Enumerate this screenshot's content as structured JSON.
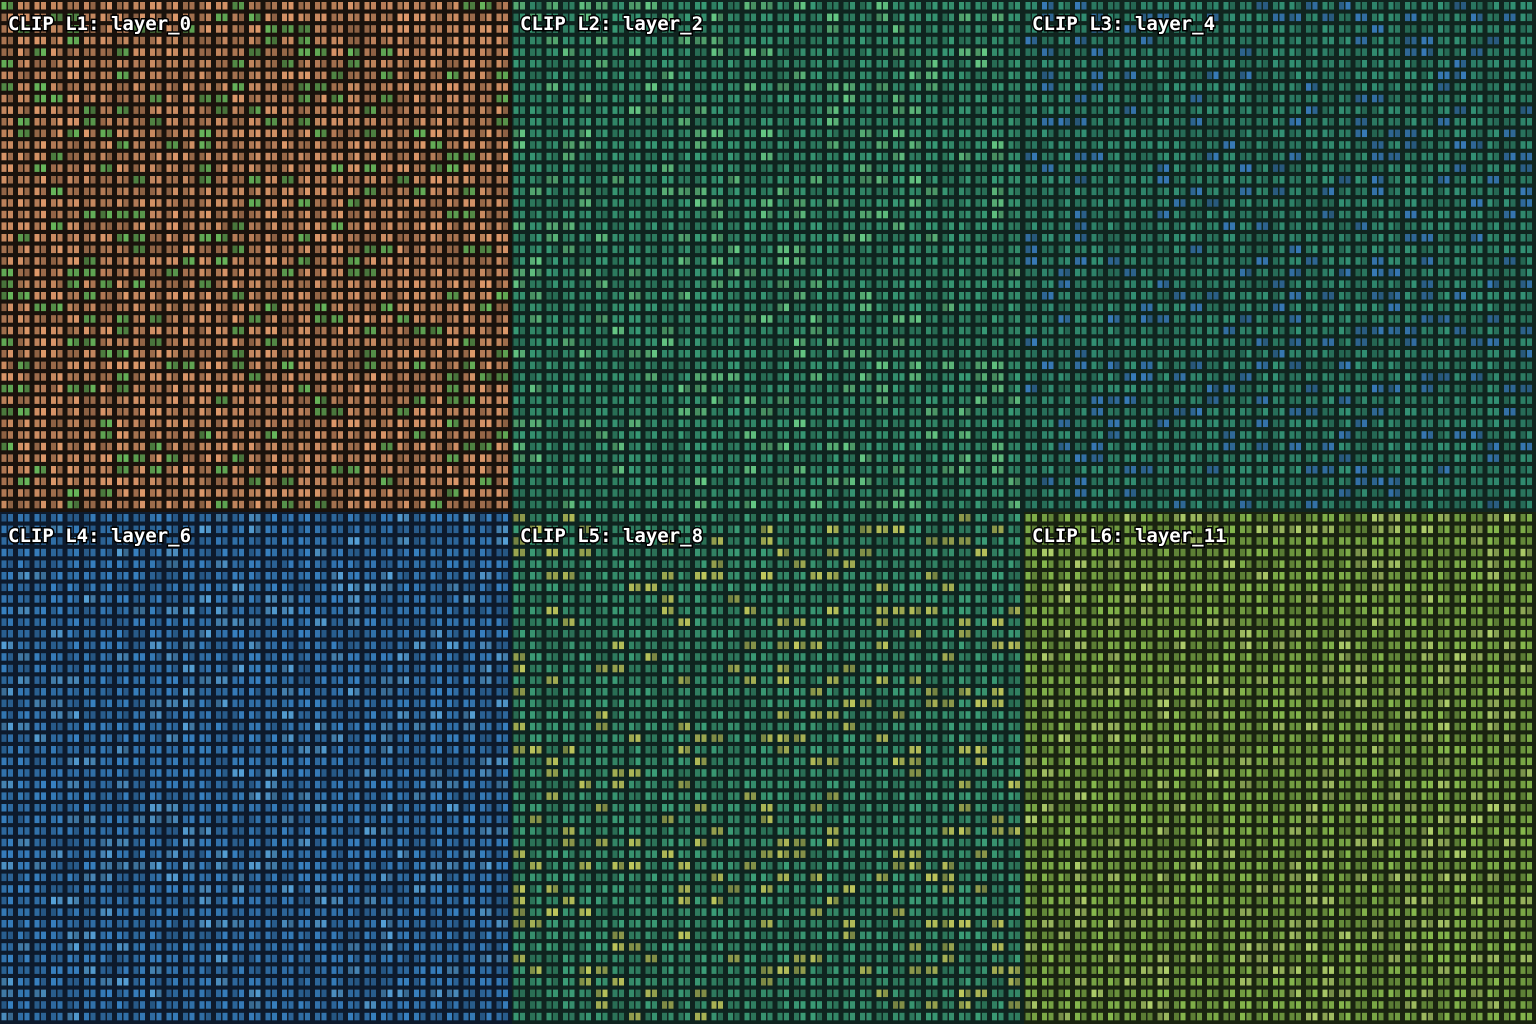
{
  "panels": [
    {
      "title": "CLIP L1: layer_0"
    },
    {
      "title": "CLIP L2: layer_2"
    },
    {
      "title": "CLIP L3: layer_4"
    },
    {
      "title": "CLIP L4: layer_6"
    },
    {
      "title": "CLIP L5: layer_8"
    },
    {
      "title": "CLIP L6: layer_11"
    }
  ]
}
